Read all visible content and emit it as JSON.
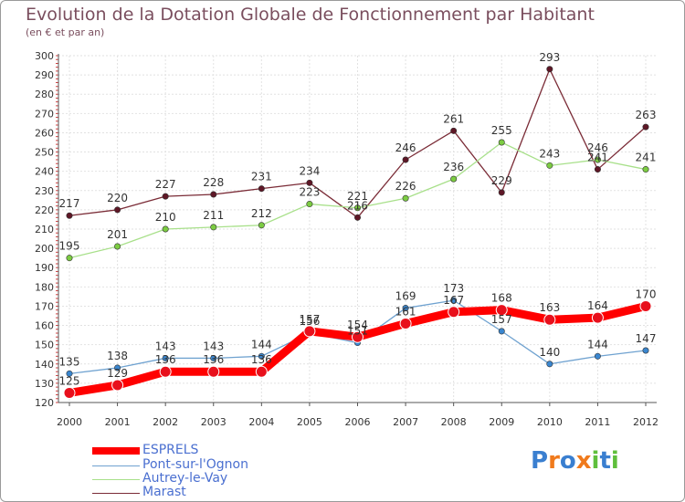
{
  "header": {
    "title": "Evolution de la Dotation Globale de Fonctionnement par Habitant",
    "subtitle": "(en € et par an)"
  },
  "logo": {
    "text": "Proxiti",
    "letters": [
      "P",
      "r",
      "o",
      "x",
      "i",
      "t",
      "i"
    ],
    "colors": [
      "#3a7fd0",
      "#f07a1c",
      "#3a7fd0",
      "#f07a1c",
      "#5fbf3c",
      "#3a7fd0",
      "#5fbf3c"
    ]
  },
  "chart_data": {
    "type": "line",
    "title": "Evolution de la Dotation Globale de Fonctionnement par Habitant",
    "subtitle": "(en € et par an)",
    "xlabel": "",
    "ylabel": "",
    "categories": [
      "2000",
      "2001",
      "2002",
      "2003",
      "2004",
      "2005",
      "2006",
      "2007",
      "2008",
      "2009",
      "2010",
      "2011",
      "2012"
    ],
    "ylim": [
      120,
      300
    ],
    "yticks": [
      120,
      130,
      140,
      150,
      160,
      170,
      180,
      190,
      200,
      210,
      220,
      230,
      240,
      250,
      260,
      270,
      280,
      290,
      300
    ],
    "grid": true,
    "legend_position": "bottom-left",
    "series": [
      {
        "name": "ESPRELS",
        "color": "#ff0000",
        "marker": "#e8101c",
        "values": [
          125,
          129,
          136,
          136,
          136,
          157,
          154,
          161,
          167,
          168,
          163,
          164,
          170
        ]
      },
      {
        "name": "Pont-sur-l'Ognon",
        "color": "#6fa2d0",
        "marker": "#3a86cf",
        "values": [
          135,
          138,
          143,
          143,
          144,
          156,
          151,
          169,
          173,
          157,
          140,
          144,
          147
        ]
      },
      {
        "name": "Autrey-le-Vay",
        "color": "#a8e08a",
        "marker": "#7ccc42",
        "values": [
          195,
          201,
          210,
          211,
          212,
          223,
          221,
          226,
          236,
          255,
          243,
          246,
          241
        ]
      },
      {
        "name": "Marast",
        "color": "#7a2b36",
        "marker": "#5e1726",
        "values": [
          217,
          220,
          227,
          228,
          231,
          234,
          216,
          246,
          261,
          229,
          293,
          241,
          263
        ]
      }
    ],
    "point_labels": [
      {
        "series": "ESPRELS",
        "texts": [
          "125",
          "129",
          "136",
          "136",
          "136",
          "157",
          "154",
          "161",
          "167",
          "168",
          "163",
          "164",
          "170"
        ]
      },
      {
        "series": "Pont-sur-l'Ognon",
        "texts": [
          "135",
          "138",
          "143",
          "143",
          "144",
          "156",
          "151",
          "169",
          "173",
          "157",
          "140",
          "144",
          "147"
        ]
      },
      {
        "series": "Autrey-le-Vay",
        "texts": [
          "195",
          "201",
          "210",
          "211",
          "212",
          "223",
          "221",
          "226",
          "236",
          "255",
          "243",
          "246",
          "241"
        ]
      },
      {
        "series": "Marast",
        "texts": [
          "217",
          "220",
          "227",
          "228",
          "231",
          "234",
          "216",
          "246",
          "261",
          "229",
          "293",
          "241",
          "263"
        ]
      }
    ]
  }
}
